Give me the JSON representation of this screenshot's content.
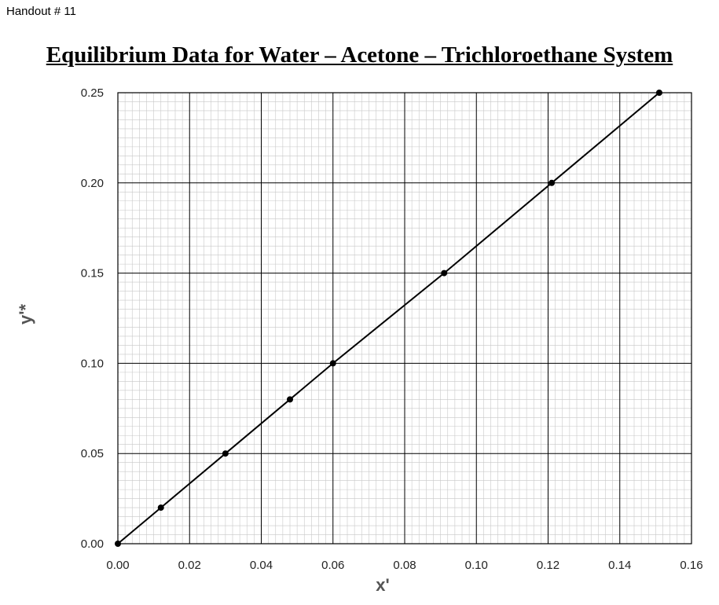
{
  "header": {
    "handout": "Handout # 11"
  },
  "chart_data": {
    "type": "line",
    "title": "Equilibrium Data for Water – Acetone – Trichloroethane System",
    "xlabel": "x'",
    "ylabel": "y'*",
    "xlim": [
      0,
      0.16
    ],
    "ylim": [
      0,
      0.25
    ],
    "x_ticks": [
      0.0,
      0.02,
      0.04,
      0.06,
      0.08,
      0.1,
      0.12,
      0.14,
      0.16
    ],
    "y_ticks": [
      0.0,
      0.05,
      0.1,
      0.15,
      0.2,
      0.25
    ],
    "grid": true,
    "series": [
      {
        "x": [
          0.0,
          0.012,
          0.03,
          0.048,
          0.06,
          0.091,
          0.121,
          0.151
        ],
        "y": [
          0.0,
          0.02,
          0.05,
          0.08,
          0.1,
          0.15,
          0.2,
          0.25
        ]
      }
    ],
    "colors": {
      "line": "#000000",
      "major_grid": "#000000",
      "minor_grid": "#c8c8c8"
    }
  }
}
